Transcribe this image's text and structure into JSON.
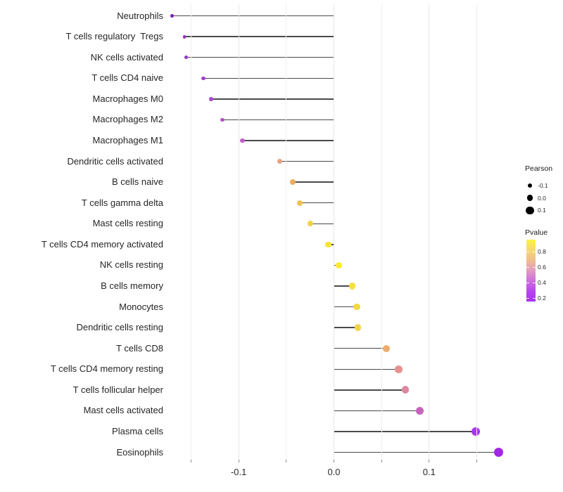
{
  "figure": {
    "background": "#ffffff",
    "text_color": "#262626",
    "stem_color": "#4a4a4a",
    "gridline_major_color": "#e7e7e7",
    "gridline_minor_color": "#efefef",
    "tickmark_color": "#8c8c8c"
  },
  "chart_data": {
    "type": "lollipop",
    "title": "",
    "xlabel": "",
    "ylabel": "",
    "grid": true,
    "xlim": [
      -0.1755,
      0.1962
    ],
    "categories": [
      "Neutrophils",
      "T cells regulatory  Tregs",
      "NK cells activated",
      "T cells CD4 naive",
      "Macrophages M0",
      "Macrophages M2",
      "Macrophages M1",
      "Dendritic cells activated",
      "B cells naive",
      "T cells gamma delta",
      "Mast cells resting",
      "T cells CD4 memory activated",
      "NK cells resting",
      "B cells memory",
      "Monocytes",
      "Dendritic cells resting",
      "T cells CD8",
      "T cells CD4 memory resting",
      "T cells follicular helper",
      "Mast cells activated",
      "Plasma cells",
      "Eosinophils"
    ],
    "series": [
      {
        "name": "Pearson",
        "values": [
          -0.17,
          -0.157,
          -0.155,
          -0.137,
          -0.129,
          -0.117,
          -0.096,
          -0.057,
          -0.043,
          -0.036,
          -0.025,
          -0.006,
          0.005,
          0.019,
          0.024,
          0.025,
          0.055,
          0.068,
          0.075,
          0.09,
          0.149,
          0.173
        ]
      },
      {
        "name": "Pvalue_estimated_from_color",
        "values": [
          0.15,
          0.2,
          0.21,
          0.26,
          0.3,
          0.33,
          0.38,
          0.62,
          0.68,
          0.73,
          0.78,
          0.9,
          0.92,
          0.84,
          0.82,
          0.79,
          0.67,
          0.57,
          0.52,
          0.4,
          0.19,
          0.17
        ]
      }
    ],
    "point_colors": [
      "#7A2AAE",
      "#9134C6",
      "#9336C8",
      "#A33FD0",
      "#AF4BCB",
      "#B751C8",
      "#C05EC4",
      "#E9A07E",
      "#EBAC60",
      "#EFC253",
      "#F2D147",
      "#F8E52B",
      "#F8EB2F",
      "#F5DF3D",
      "#F4D93F",
      "#F2D348",
      "#EFAC6B",
      "#E6928F",
      "#DE87A0",
      "#C763BC",
      "#A838E0",
      "#A228E8"
    ],
    "x_axis": {
      "tick_values": [
        -0.15,
        -0.1,
        -0.05,
        0.0,
        0.05,
        0.1,
        0.15
      ],
      "major_values": [
        -0.1,
        0.0,
        0.1
      ],
      "major_labels": [
        "-0.1",
        "0.0",
        "0.1"
      ]
    },
    "legend_position": "right"
  },
  "legend": {
    "size": {
      "title": "Pearson",
      "items": [
        {
          "label": "-0.1",
          "value": -0.1
        },
        {
          "label": "0.0",
          "value": 0.0
        },
        {
          "label": "0.1",
          "value": 0.1
        }
      ]
    },
    "color": {
      "title": "Pvalue",
      "tick_labels": [
        "0.8",
        "0.6",
        "0.4",
        "0.2"
      ],
      "tick_values": [
        0.8,
        0.6,
        0.4,
        0.2
      ],
      "range": [
        0.15,
        0.95
      ],
      "gradient_top_to_bottom": [
        "#FCF33A",
        "#F6D96E",
        "#EFBD8D",
        "#E39BC1",
        "#CE6EDD",
        "#B845EF",
        "#AA30F2"
      ]
    }
  }
}
